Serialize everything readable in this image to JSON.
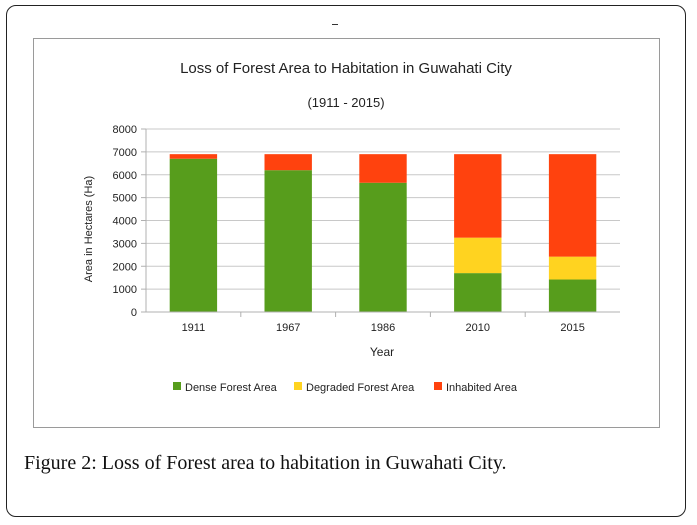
{
  "chart_data": {
    "type": "bar",
    "stacked": true,
    "title": "Loss of Forest Area to Habitation in Guwahati City",
    "subtitle": "(1911 - 2015)",
    "xlabel": "Year",
    "ylabel": "Area in Hectares (Ha)",
    "ylim": [
      0,
      8000
    ],
    "yticks": [
      0,
      1000,
      2000,
      3000,
      4000,
      5000,
      6000,
      7000,
      8000
    ],
    "grid": true,
    "legend_position": "bottom",
    "categories": [
      "1911",
      "1967",
      "1986",
      "2010",
      "2015"
    ],
    "series": [
      {
        "name": "Dense Forest Area",
        "color": "#579d1c",
        "values": [
          6700,
          6200,
          5650,
          1700,
          1420
        ]
      },
      {
        "name": "Degraded Forest Area",
        "color": "#ffd320",
        "values": [
          0,
          0,
          0,
          1550,
          1000
        ]
      },
      {
        "name": "Inhabited Area",
        "color": "#ff420e",
        "values": [
          200,
          700,
          1250,
          3650,
          4480
        ]
      }
    ]
  },
  "caption": {
    "label": "Figure 2:",
    "text": " Loss of Forest area to habitation in Guwahati City."
  }
}
